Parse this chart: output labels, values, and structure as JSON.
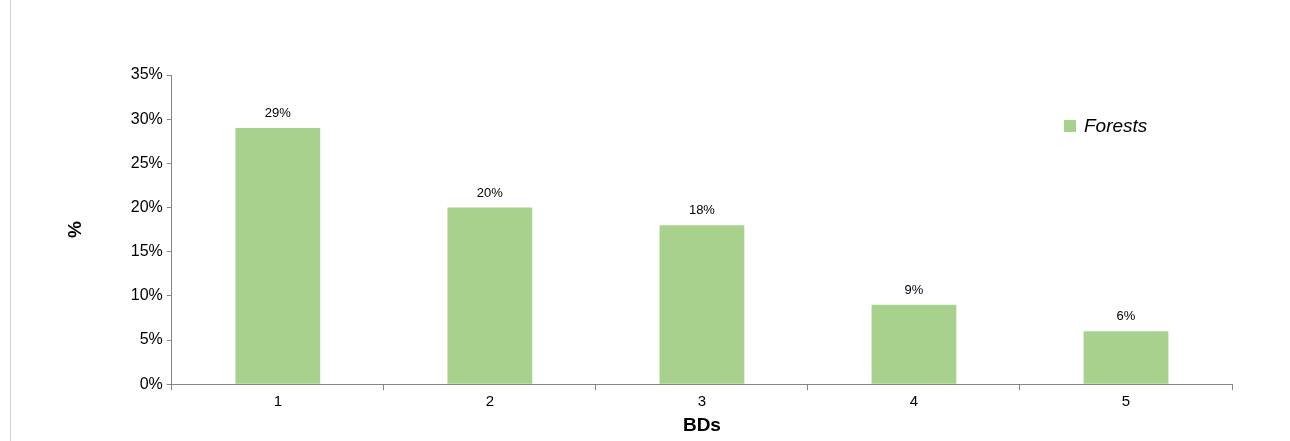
{
  "chart_data": {
    "type": "bar",
    "xlabel": "BDs",
    "ylabel": "%",
    "categories": [
      "1",
      "2",
      "3",
      "4",
      "5"
    ],
    "series": [
      {
        "name": "Forests",
        "color": "#a9d18e",
        "values": [
          29,
          20,
          18,
          9,
          6
        ],
        "value_labels": [
          "29%",
          "20%",
          "18%",
          "9%",
          "6%"
        ]
      }
    ],
    "ylim": [
      0,
      35
    ],
    "yticks": [
      {
        "value": 0,
        "label": "0%"
      },
      {
        "value": 5,
        "label": "5%"
      },
      {
        "value": 10,
        "label": "10%"
      },
      {
        "value": 15,
        "label": "15%"
      },
      {
        "value": 20,
        "label": "20%"
      },
      {
        "value": 25,
        "label": "25%"
      },
      {
        "value": 30,
        "label": "30%"
      },
      {
        "value": 35,
        "label": "35%"
      }
    ],
    "grid": false,
    "legend": "top right"
  }
}
